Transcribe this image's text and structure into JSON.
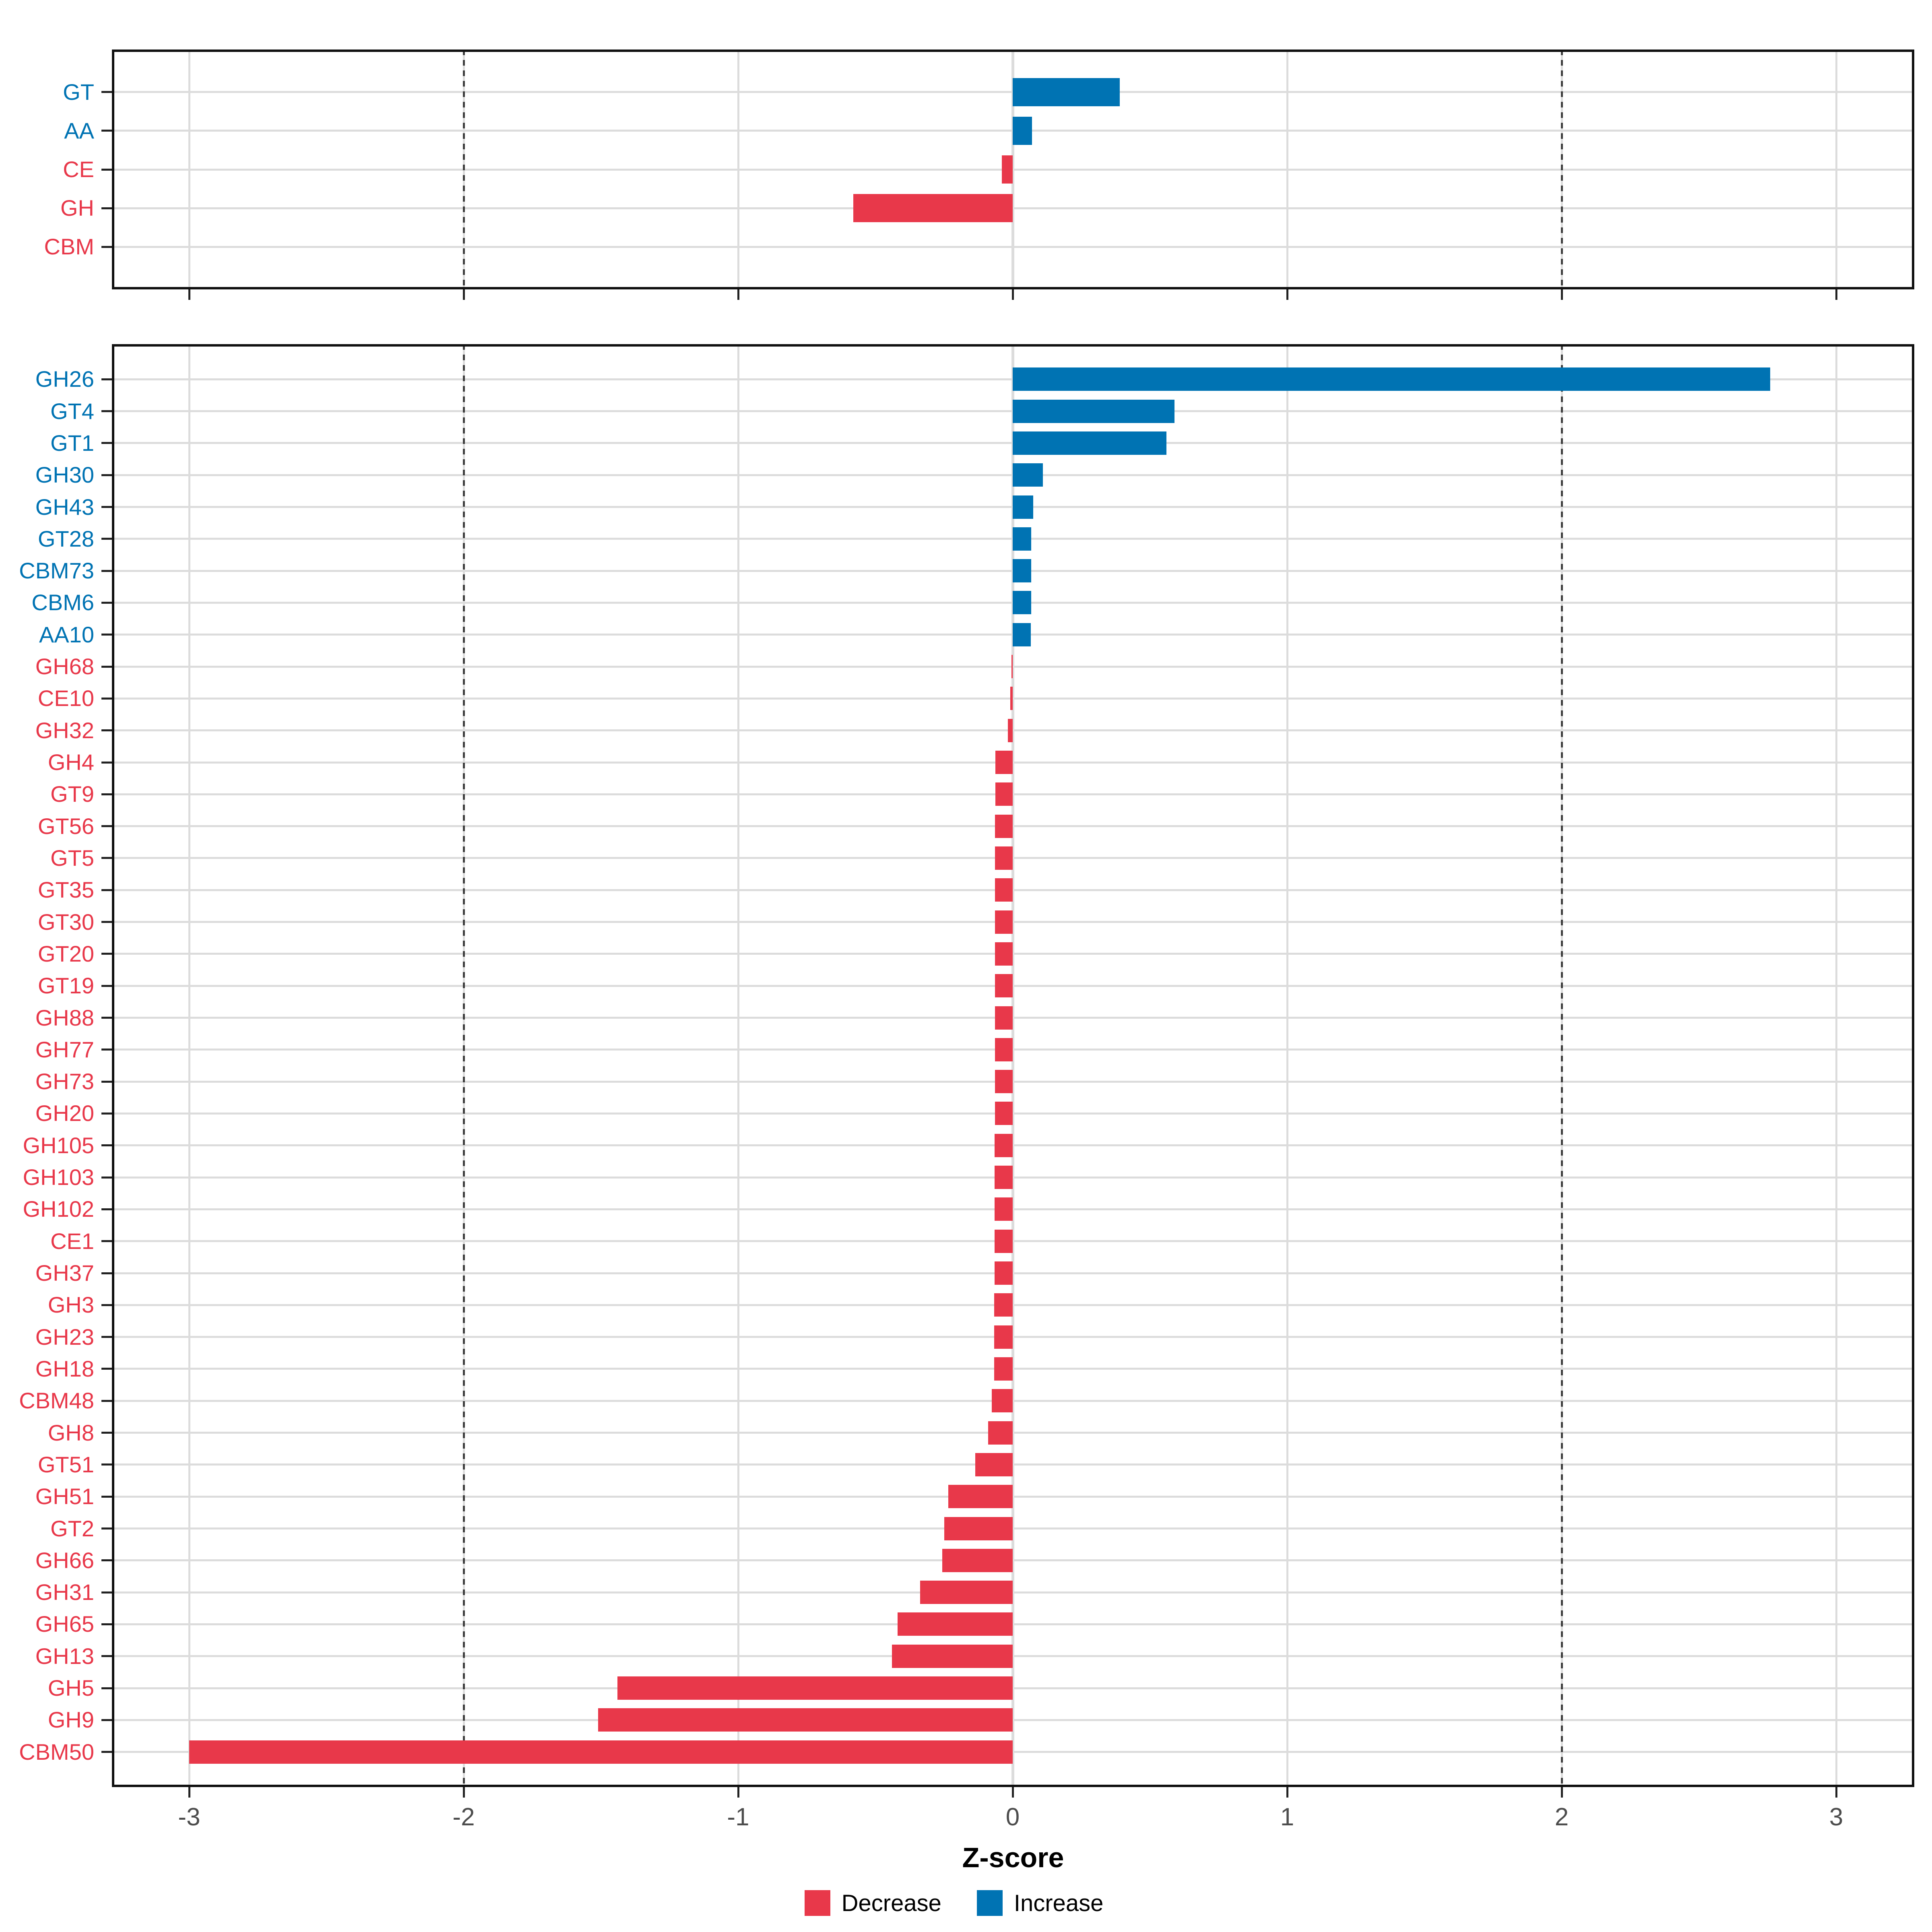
{
  "colors": {
    "decrease": "#E8384A",
    "increase": "#0073B3",
    "grid": "#DCDCDC",
    "dashed_line": "#3C3C3C",
    "panel_border": "#111111",
    "tick_mark": "#222222",
    "axis_text": "#4D4D4D",
    "title_text": "#000000",
    "background": "#FFFFFF"
  },
  "axis": {
    "title": "Z-score",
    "tick_labels": [
      "-3",
      "-2",
      "-1",
      "0",
      "1",
      "2",
      "3"
    ],
    "ticks": [
      -3,
      -2,
      -1,
      0,
      1,
      2,
      3
    ],
    "dashed_reference_lines": [
      -2,
      2
    ],
    "xlim": [
      -3.28,
      3.28
    ]
  },
  "legend": {
    "items": [
      {
        "label": "Decrease",
        "key": "decrease"
      },
      {
        "label": "Increase",
        "key": "increase"
      }
    ]
  },
  "chart_data": [
    {
      "type": "bar",
      "orientation": "horizontal",
      "panel": "cazyme-class",
      "xlabel": "Z-score",
      "xlim": [
        -3.28,
        3.28
      ],
      "grid": "on",
      "legend_position": "bottom",
      "categories": [
        "GT",
        "AA",
        "CE",
        "GH",
        "CBM"
      ],
      "values": [
        0.39,
        0.07,
        -0.04,
        -0.58,
        0.0
      ],
      "directions": [
        "increase",
        "increase",
        "decrease",
        "decrease",
        "decrease"
      ]
    },
    {
      "type": "bar",
      "orientation": "horizontal",
      "panel": "cazyme-family",
      "xlabel": "Z-score",
      "xlim": [
        -3.28,
        3.28
      ],
      "grid": "on",
      "legend_position": "bottom",
      "categories": [
        "GH26",
        "GT4",
        "GT1",
        "GH30",
        "GH43",
        "GT28",
        "CBM73",
        "CBM6",
        "AA10",
        "GH68",
        "CE10",
        "GH32",
        "GH4",
        "GT9",
        "GT56",
        "GT5",
        "GT35",
        "GT30",
        "GT20",
        "GT19",
        "GH88",
        "GH77",
        "GH73",
        "GH20",
        "GH105",
        "GH103",
        "GH102",
        "CE1",
        "GH37",
        "GH3",
        "GH23",
        "GH18",
        "CBM48",
        "GH8",
        "GT51",
        "GH51",
        "GT2",
        "GH66",
        "GH31",
        "GH65",
        "GH13",
        "GH5",
        "GH9",
        "CBM50"
      ],
      "values": [
        2.76,
        0.59,
        0.56,
        0.11,
        0.075,
        0.068,
        0.067,
        0.067,
        0.066,
        -0.005,
        -0.009,
        -0.018,
        -0.063,
        -0.063,
        -0.064,
        -0.064,
        -0.064,
        -0.064,
        -0.065,
        -0.065,
        -0.065,
        -0.065,
        -0.065,
        -0.065,
        -0.066,
        -0.066,
        -0.066,
        -0.066,
        -0.066,
        -0.067,
        -0.067,
        -0.068,
        -0.076,
        -0.09,
        -0.136,
        -0.235,
        -0.249,
        -0.257,
        -0.337,
        -0.42,
        -0.44,
        -1.44,
        -1.51,
        -3.0
      ],
      "directions": [
        "increase",
        "increase",
        "increase",
        "increase",
        "increase",
        "increase",
        "increase",
        "increase",
        "increase",
        "decrease",
        "decrease",
        "decrease",
        "decrease",
        "decrease",
        "decrease",
        "decrease",
        "decrease",
        "decrease",
        "decrease",
        "decrease",
        "decrease",
        "decrease",
        "decrease",
        "decrease",
        "decrease",
        "decrease",
        "decrease",
        "decrease",
        "decrease",
        "decrease",
        "decrease",
        "decrease",
        "decrease",
        "decrease",
        "decrease",
        "decrease",
        "decrease",
        "decrease",
        "decrease",
        "decrease",
        "decrease",
        "decrease",
        "decrease",
        "decrease"
      ]
    }
  ]
}
